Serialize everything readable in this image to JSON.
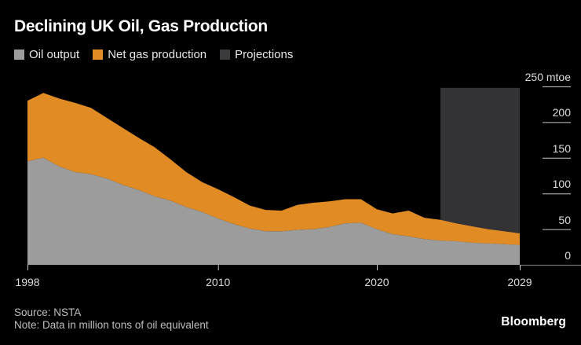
{
  "header": {
    "title": "Declining UK Oil, Gas Production"
  },
  "legend": [
    {
      "label": "Oil output",
      "color": "#9c9c9c"
    },
    {
      "label": "Net gas production",
      "color": "#e08b24"
    },
    {
      "label": "Projections",
      "color": "#3b3b3e"
    }
  ],
  "footer": {
    "source": "Source: NSTA",
    "note": "Note: Data in million tons of oil equivalent",
    "brand": "Bloomberg"
  },
  "colors": {
    "background": "#000000",
    "oil_area": "#9c9c9c",
    "gas_area": "#e08b24",
    "projection_box": "#333336",
    "tick": "#c9c9c9",
    "axis_extension": "#6e6e6e"
  },
  "chart_data": {
    "type": "area",
    "stacked": true,
    "title": "Declining UK Oil, Gas Production",
    "xlabel": "",
    "ylabel": "mtoe",
    "ylim": [
      0,
      250
    ],
    "grid": false,
    "legend_position": "top",
    "x": [
      1998,
      1999,
      2000,
      2001,
      2002,
      2003,
      2004,
      2005,
      2006,
      2007,
      2008,
      2009,
      2010,
      2011,
      2012,
      2013,
      2014,
      2015,
      2016,
      2017,
      2018,
      2019,
      2020,
      2021,
      2022,
      2023,
      2024,
      2025,
      2026,
      2027,
      2028,
      2029
    ],
    "series": [
      {
        "name": "Oil output",
        "values": [
          145,
          150,
          138,
          130,
          127,
          121,
          112,
          105,
          96,
          90,
          81,
          74,
          65,
          57,
          51,
          47,
          47,
          49,
          50,
          53,
          58,
          59,
          50,
          43,
          40,
          36,
          34,
          33,
          31,
          30,
          29,
          28
        ]
      },
      {
        "name": "Net gas production",
        "values": [
          85,
          91,
          95,
          97,
          93,
          85,
          80,
          73,
          69,
          58,
          49,
          42,
          41,
          38,
          32,
          30,
          29,
          35,
          37,
          36,
          34,
          33,
          28,
          29,
          36,
          30,
          29,
          25,
          23,
          20,
          18,
          16
        ]
      }
    ],
    "projection": {
      "start_x": 2024,
      "end_x": 2029,
      "top_value": 248
    },
    "y_axis": {
      "values": [
        250,
        200,
        150,
        100,
        50,
        0
      ],
      "labels": [
        "250 mtoe",
        "200",
        "150",
        "100",
        "50",
        "0"
      ]
    },
    "x_axis": {
      "values": [
        1998,
        2010,
        2020,
        2029
      ],
      "labels": [
        "1998",
        "2010",
        "2020",
        "2029"
      ]
    }
  }
}
